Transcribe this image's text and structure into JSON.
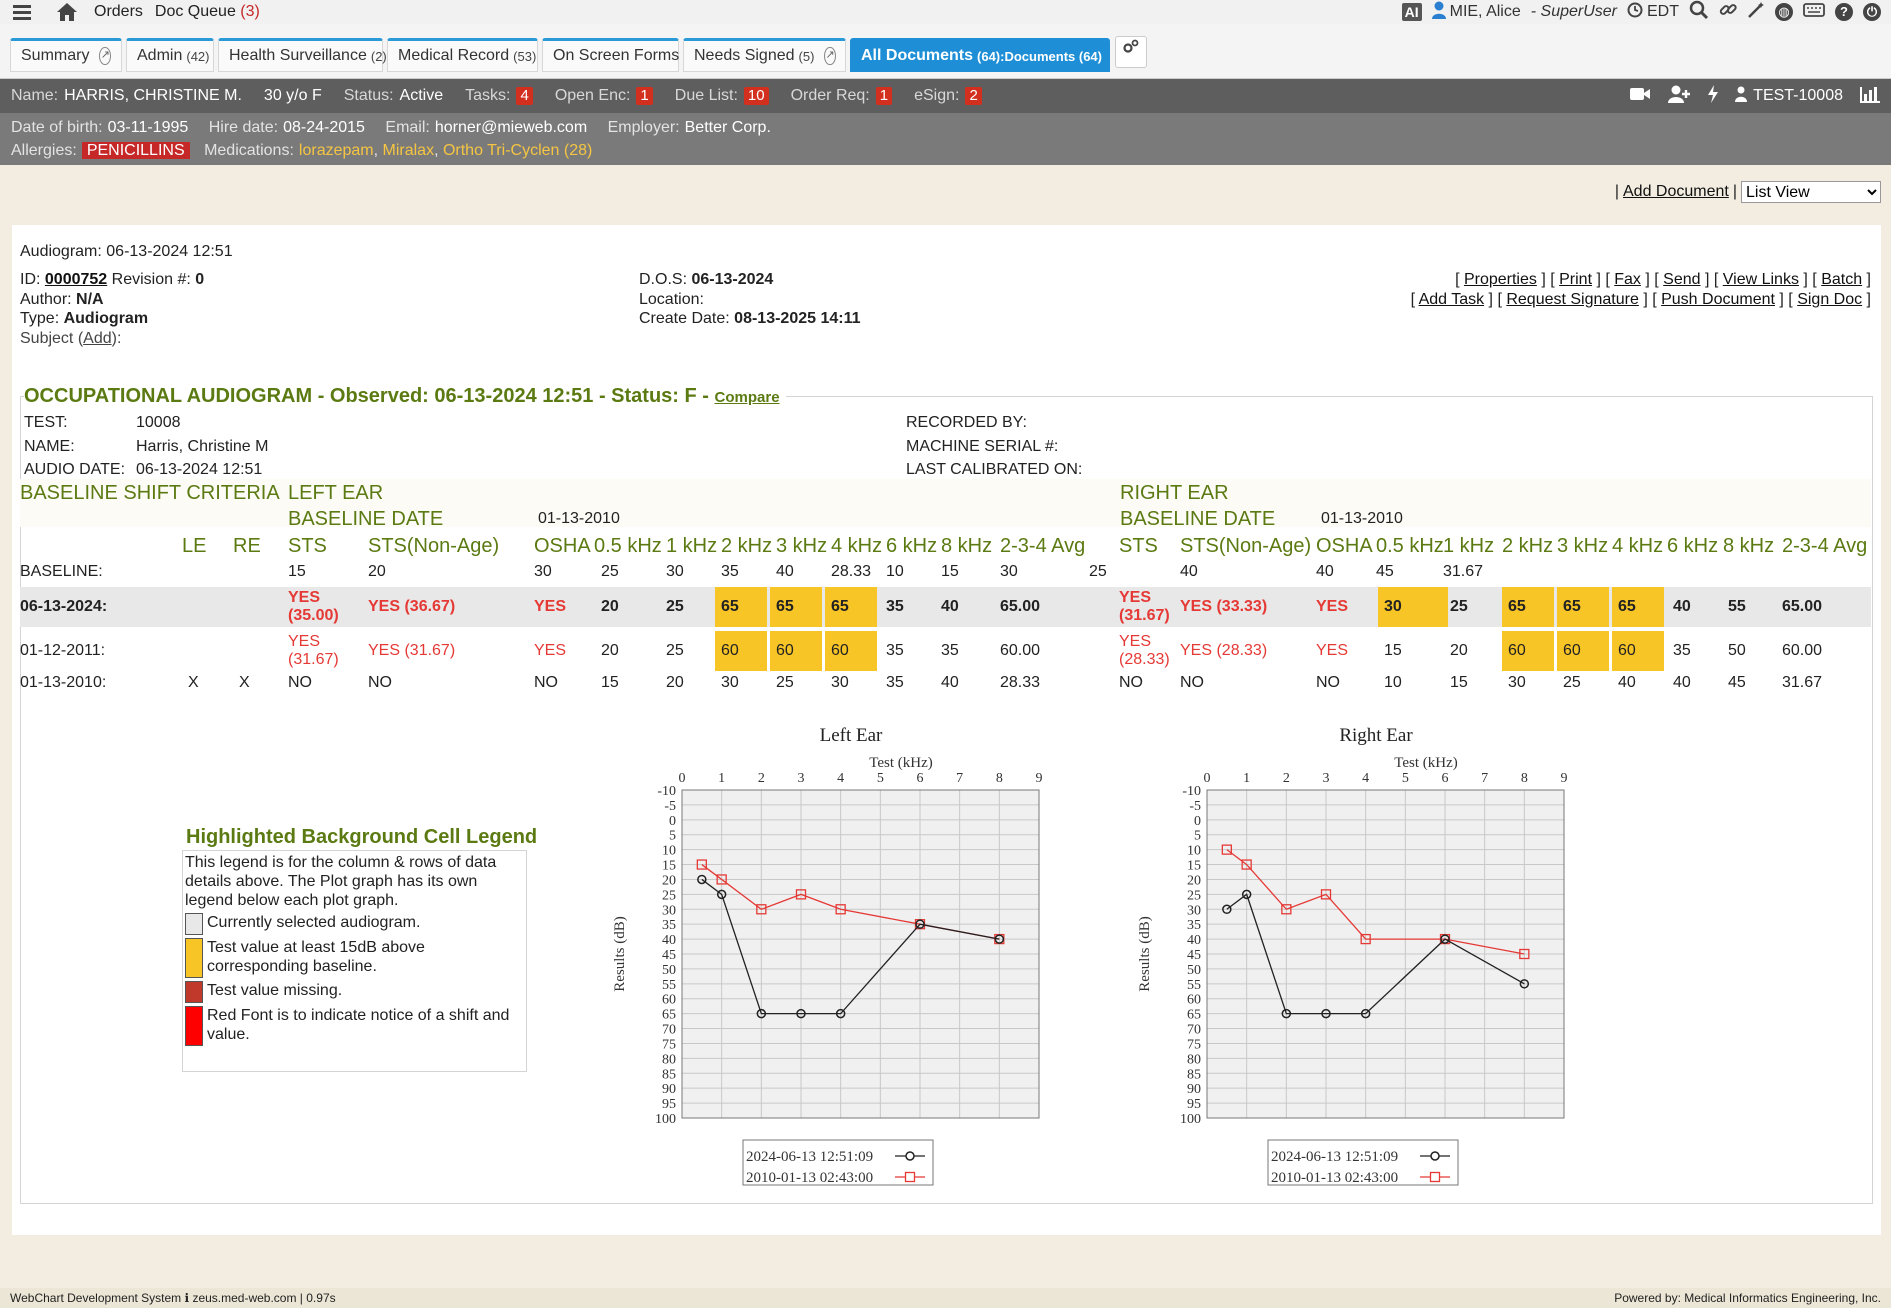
{
  "topbar": {
    "orders": "Orders",
    "doc_queue": "Doc Queue",
    "doc_queue_count": "(3)",
    "ai": "AI",
    "user": "MIE, Alice",
    "role": "- SuperUser",
    "timezone": "EDT"
  },
  "tabs": [
    {
      "label": "Summary",
      "count": ""
    },
    {
      "label": "Admin",
      "count": "(42)"
    },
    {
      "label": "Health Surveillance",
      "count": "(2)"
    },
    {
      "label": "Medical Record",
      "count": "(53)"
    },
    {
      "label": "On Screen Forms",
      "count": ""
    },
    {
      "label": "Needs Signed",
      "count": "(5)"
    },
    {
      "label": "All Documents",
      "count": "(64):Documents (64)"
    }
  ],
  "patient": {
    "name_label": "Name:",
    "name": "HARRIS, CHRISTINE M.",
    "age": "30 y/o F",
    "status_label": "Status:",
    "status": "Active",
    "tasks_label": "Tasks:",
    "tasks": "4",
    "open_enc_label": "Open Enc:",
    "open_enc": "1",
    "due_list_label": "Due List:",
    "due_list": "10",
    "order_req_label": "Order Req:",
    "order_req": "1",
    "esign_label": "eSign:",
    "esign": "2",
    "test_id": "TEST-10008",
    "dob_label": "Date of birth:",
    "dob": "03-11-1995",
    "hire_label": "Hire date:",
    "hire": "08-24-2015",
    "email_label": "Email:",
    "email": "horner@mieweb.com",
    "employer_label": "Employer:",
    "employer": "Better Corp.",
    "allergies_label": "Allergies:",
    "allergy": "PENICILLINS",
    "medications_label": "Medications:",
    "meds": [
      "lorazepam",
      "Miralax",
      "Ortho Tri-Cyclen (28)"
    ]
  },
  "doc_controls": {
    "add_document": "Add Document",
    "view": "List View"
  },
  "document": {
    "title": "Audiogram: 06-13-2024 12:51",
    "id_label": "ID:",
    "id": "0000752",
    "revision_label": "Revision #:",
    "revision": "0",
    "author_label": "Author:",
    "author": "N/A",
    "type_label": "Type:",
    "type": "Audiogram",
    "subject_label": "Subject (",
    "subject_add": "Add",
    "subject_end": "):",
    "dos_label": "D.O.S:",
    "dos": "06-13-2024",
    "location_label": "Location:",
    "create_label": "Create Date:",
    "create_date": "08-13-2025 14:11",
    "actions_row1": [
      "Properties",
      "Print",
      "Fax",
      "Send",
      "View Links",
      "Batch"
    ],
    "actions_row2": [
      "Add Task",
      "Request Signature",
      "Push Document",
      "Sign Doc"
    ]
  },
  "audiogram": {
    "heading": "OCCUPATIONAL AUDIOGRAM - Observed: 06-13-2024 12:51 - Status: F -",
    "compare": "Compare",
    "test_label": "TEST:",
    "test": "10008",
    "name_label": "NAME:",
    "name": "Harris, Christine M",
    "audio_date_label": "AUDIO DATE:",
    "audio_date": "06-13-2024 12:51",
    "recorded_by": "RECORDED BY:",
    "machine_serial": "MACHINE SERIAL #:",
    "last_calibrated": "LAST CALIBRATED ON:",
    "criteria_label": "BASELINE SHIFT CRITERIA",
    "left_ear": "LEFT EAR",
    "right_ear": "RIGHT EAR",
    "baseline_date_label": "BASELINE DATE",
    "left_baseline_date": "01-13-2010",
    "right_baseline_date": "01-13-2010",
    "col_le": "LE",
    "col_re": "RE",
    "col_sts": "STS",
    "col_sts_nonage": "STS(Non-Age)",
    "col_osha": "OSHA",
    "freqs": [
      "0.5 kHz",
      "1 kHz",
      "2 kHz",
      "3 kHz",
      "4 kHz",
      "6 kHz",
      "8 kHz",
      "2-3-4 Avg"
    ],
    "baseline_row": {
      "label": "BASELINE:",
      "left": [
        "15",
        "20",
        "30",
        "25",
        "30",
        "35",
        "40",
        "28.33",
        "10",
        "15",
        "30"
      ],
      "right": [
        "25",
        "40",
        "40",
        "45",
        "31.67"
      ]
    },
    "rows": [
      {
        "label": "06-13-2024:",
        "le": "",
        "re": "",
        "l_sts": "YES (35.00)",
        "l_nonage": "YES (36.67)",
        "l_osha": "YES",
        "l_vals": [
          "20",
          "25",
          "65",
          "65",
          "65",
          "35",
          "40",
          "65.00"
        ],
        "r_sts": "YES (31.67)",
        "r_nonage": "YES (33.33)",
        "r_osha": "YES",
        "r_vals": [
          "30",
          "25",
          "65",
          "65",
          "65",
          "40",
          "55",
          "65.00"
        ]
      },
      {
        "label": "01-12-2011:",
        "le": "",
        "re": "",
        "l_sts": "YES (31.67)",
        "l_nonage": "YES (31.67)",
        "l_osha": "YES",
        "l_vals": [
          "20",
          "25",
          "60",
          "60",
          "60",
          "35",
          "35",
          "60.00"
        ],
        "r_sts": "YES (28.33)",
        "r_nonage": "YES (28.33)",
        "r_osha": "YES",
        "r_vals": [
          "15",
          "20",
          "60",
          "60",
          "60",
          "35",
          "50",
          "60.00"
        ]
      },
      {
        "label": "01-13-2010:",
        "le": "X",
        "re": "X",
        "l_sts": "NO",
        "l_nonage": "NO",
        "l_osha": "NO",
        "l_vals": [
          "15",
          "20",
          "30",
          "25",
          "30",
          "35",
          "40",
          "28.33"
        ],
        "r_sts": "NO",
        "r_nonage": "NO",
        "r_osha": "NO",
        "r_vals": [
          "10",
          "15",
          "30",
          "25",
          "40",
          "40",
          "45",
          "31.67"
        ]
      }
    ]
  },
  "legend": {
    "title": "Highlighted Background Cell Legend",
    "description": "This legend is for the column & rows of data details above. The Plot graph has its own legend below each plot graph.",
    "items": [
      {
        "color": "#e8e8e8",
        "text": "Currently selected audiogram."
      },
      {
        "color": "#f8c526",
        "text": "Test value at least 15dB above corresponding baseline."
      },
      {
        "color": "#c0392b",
        "text": "Test value missing."
      },
      {
        "color": "#ff0000",
        "text": "Red Font is to indicate notice of a shift and value."
      }
    ]
  },
  "chart_data": [
    {
      "type": "line",
      "title": "Left Ear",
      "xlabel": "Test (kHz)",
      "ylabel": "Results (dB)",
      "xlim": [
        0,
        9
      ],
      "ylim": [
        -10,
        100
      ],
      "y_inverted": true,
      "x_ticks": [
        0,
        1,
        2,
        3,
        4,
        5,
        6,
        7,
        8,
        9
      ],
      "y_ticks": [
        -10,
        -5,
        0,
        5,
        10,
        15,
        20,
        25,
        30,
        35,
        40,
        45,
        50,
        55,
        60,
        65,
        70,
        75,
        80,
        85,
        90,
        95,
        100
      ],
      "grid": true,
      "legend_position": "bottom",
      "series": [
        {
          "name": "2024-06-13 12:51:09",
          "color": "#222222",
          "marker": "circle",
          "x": [
            0.5,
            1,
            2,
            3,
            4,
            6,
            8
          ],
          "y": [
            20,
            25,
            65,
            65,
            65,
            35,
            40
          ]
        },
        {
          "name": "2010-01-13 02:43:00",
          "color": "#e53935",
          "marker": "square",
          "x": [
            0.5,
            1,
            2,
            3,
            4,
            6,
            8
          ],
          "y": [
            15,
            20,
            30,
            25,
            30,
            35,
            40
          ]
        }
      ]
    },
    {
      "type": "line",
      "title": "Right Ear",
      "xlabel": "Test (kHz)",
      "ylabel": "Results (dB)",
      "xlim": [
        0,
        9
      ],
      "ylim": [
        -10,
        100
      ],
      "y_inverted": true,
      "x_ticks": [
        0,
        1,
        2,
        3,
        4,
        5,
        6,
        7,
        8,
        9
      ],
      "y_ticks": [
        -10,
        -5,
        0,
        5,
        10,
        15,
        20,
        25,
        30,
        35,
        40,
        45,
        50,
        55,
        60,
        65,
        70,
        75,
        80,
        85,
        90,
        95,
        100
      ],
      "grid": true,
      "legend_position": "bottom",
      "series": [
        {
          "name": "2024-06-13 12:51:09",
          "color": "#222222",
          "marker": "circle",
          "x": [
            0.5,
            1,
            2,
            3,
            4,
            6,
            8
          ],
          "y": [
            30,
            25,
            65,
            65,
            65,
            40,
            55
          ]
        },
        {
          "name": "2010-01-13 02:43:00",
          "color": "#e53935",
          "marker": "square",
          "x": [
            0.5,
            1,
            2,
            3,
            4,
            6,
            8
          ],
          "y": [
            10,
            15,
            30,
            25,
            40,
            40,
            45
          ]
        }
      ]
    }
  ],
  "footer": {
    "left": "WebChart Development System",
    "server": "zeus.med-web.com | 0.97s",
    "right": "Powered by: Medical Informatics Engineering, Inc."
  }
}
